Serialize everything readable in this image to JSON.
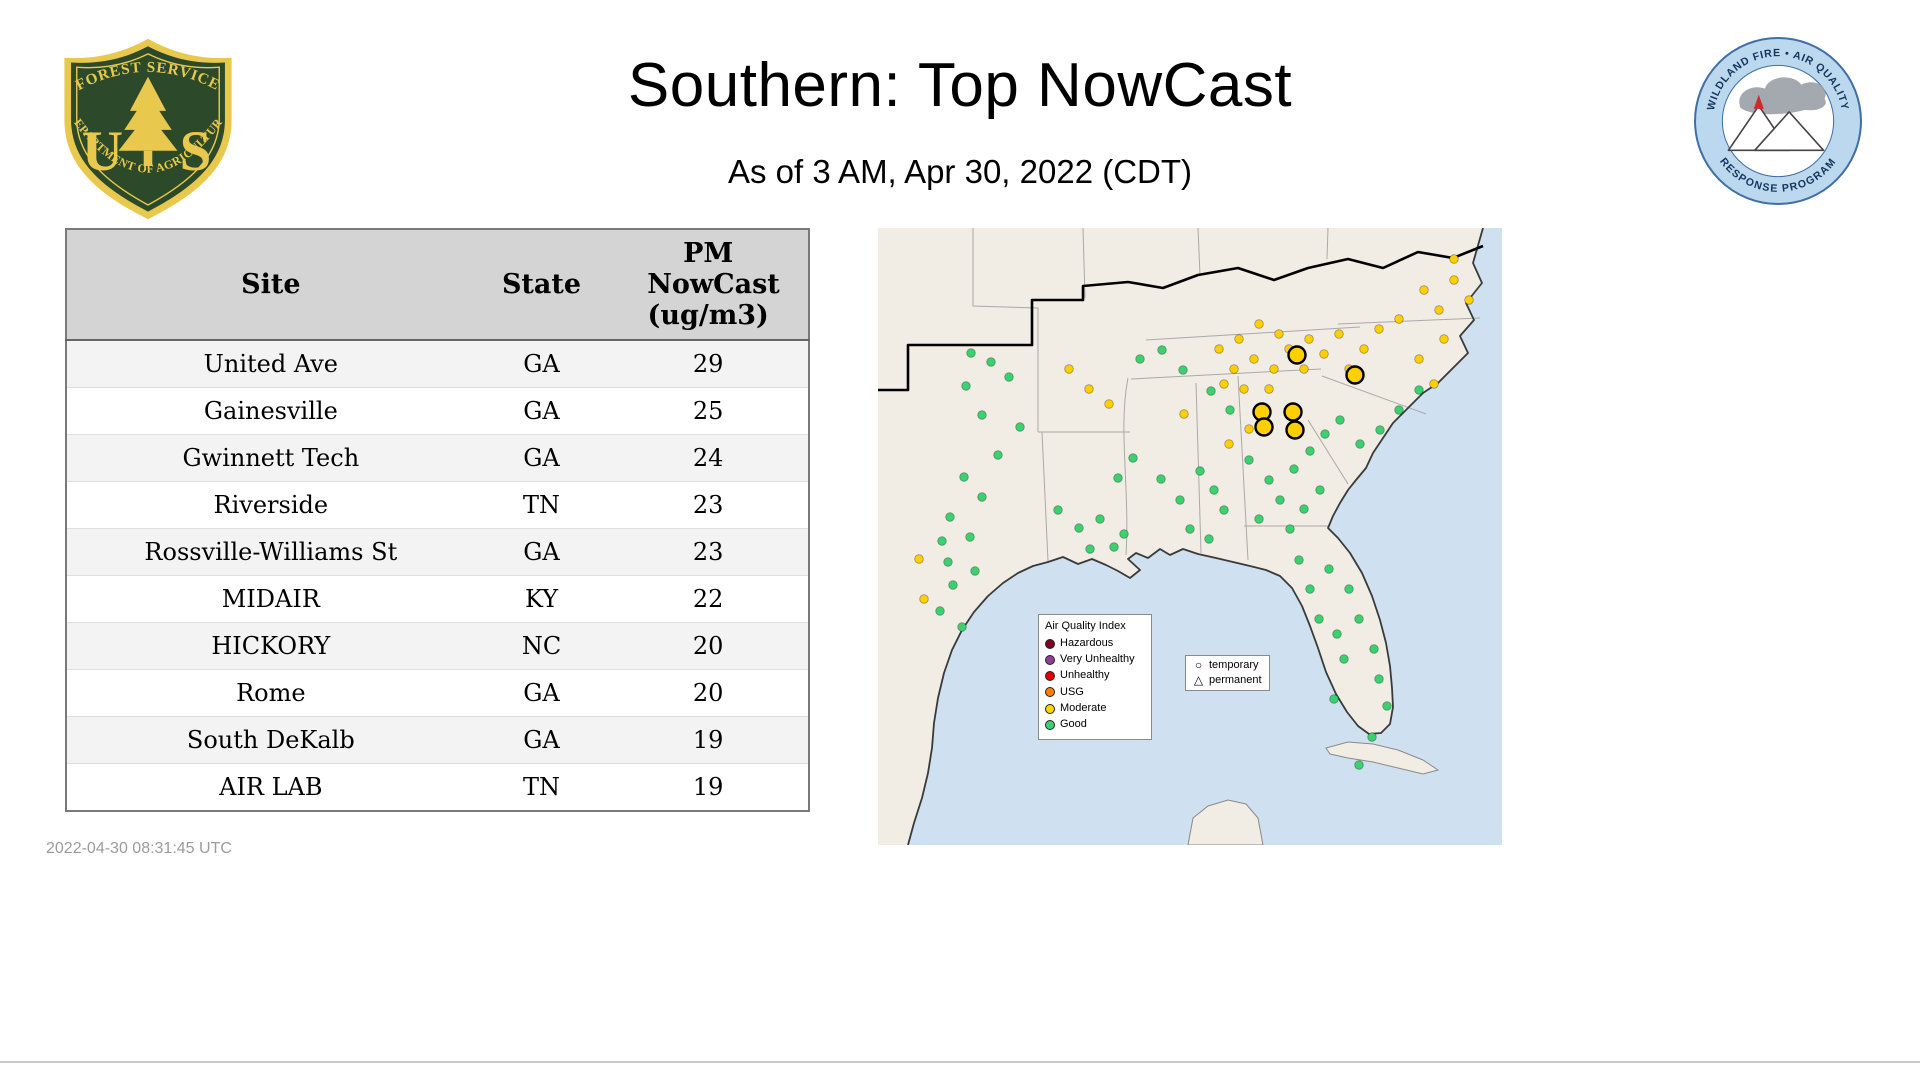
{
  "header": {
    "title": "Southern: Top NowCast",
    "subtitle": "As of  3 AM, Apr 30, 2022 (CDT)"
  },
  "logos": {
    "forest_service": {
      "arc_top": "FOREST SERVICE",
      "letter_u": "U",
      "letter_s": "S",
      "arc_bottom": "DEPARTMENT OF AGRICULTURE"
    },
    "airfire": {
      "arc_top": "WILDLAND FIRE • AIR QUALITY",
      "arc_bottom": "RESPONSE PROGRAM"
    }
  },
  "table": {
    "columns": [
      "Site",
      "State",
      "PM NowCast (ug/m3)"
    ],
    "rows": [
      [
        "United Ave",
        "GA",
        29
      ],
      [
        "Gainesville",
        "GA",
        25
      ],
      [
        "Gwinnett Tech",
        "GA",
        24
      ],
      [
        "Riverside",
        "TN",
        23
      ],
      [
        "Rossville-Williams St",
        "GA",
        23
      ],
      [
        "MIDAIR",
        "KY",
        22
      ],
      [
        "HICKORY",
        "NC",
        20
      ],
      [
        "Rome",
        "GA",
        20
      ],
      [
        "South DeKalb",
        "GA",
        19
      ],
      [
        "AIR LAB",
        "TN",
        19
      ]
    ]
  },
  "footer": {
    "timestamp": "2022-04-30 08:31:45 UTC"
  },
  "map": {
    "colors": {
      "good": "#3bd16f",
      "moderate": "#ffcf00",
      "water": "#cfe1f0",
      "land": "#f1ece4"
    },
    "legend": {
      "title": "Air Quality Index",
      "items": [
        {
          "label": "Hazardous",
          "color": "#7e0023"
        },
        {
          "label": "Very Unhealthy",
          "color": "#8f3f97"
        },
        {
          "label": "Unhealthy",
          "color": "#e00000"
        },
        {
          "label": "USG",
          "color": "#ff7e00"
        },
        {
          "label": "Moderate",
          "color": "#ffd400"
        },
        {
          "label": "Good",
          "color": "#3bd16f"
        }
      ]
    },
    "marker_legend": {
      "items": [
        {
          "label": "temporary",
          "shape": "circle"
        },
        {
          "label": "permanent",
          "shape": "triangle"
        }
      ]
    },
    "points": [
      [
        93,
        125,
        "g"
      ],
      [
        113,
        134,
        "g"
      ],
      [
        88,
        158,
        "g"
      ],
      [
        131,
        149,
        "g"
      ],
      [
        104,
        187,
        "g"
      ],
      [
        142,
        199,
        "g"
      ],
      [
        120,
        227,
        "g"
      ],
      [
        86,
        249,
        "g"
      ],
      [
        104,
        269,
        "g"
      ],
      [
        72,
        289,
        "g"
      ],
      [
        64,
        313,
        "g"
      ],
      [
        92,
        309,
        "g"
      ],
      [
        70,
        334,
        "g"
      ],
      [
        75,
        357,
        "g"
      ],
      [
        97,
        343,
        "g"
      ],
      [
        62,
        383,
        "g"
      ],
      [
        84,
        399,
        "g"
      ],
      [
        180,
        282,
        "g"
      ],
      [
        201,
        300,
        "g"
      ],
      [
        222,
        291,
        "g"
      ],
      [
        246,
        306,
        "g"
      ],
      [
        212,
        321,
        "g"
      ],
      [
        236,
        319,
        "g"
      ],
      [
        283,
        251,
        "g"
      ],
      [
        302,
        272,
        "g"
      ],
      [
        322,
        243,
        "g"
      ],
      [
        336,
        262,
        "g"
      ],
      [
        346,
        282,
        "g"
      ],
      [
        312,
        301,
        "g"
      ],
      [
        331,
        311,
        "g"
      ],
      [
        371,
        232,
        "g"
      ],
      [
        391,
        252,
        "g"
      ],
      [
        402,
        272,
        "g"
      ],
      [
        381,
        291,
        "g"
      ],
      [
        412,
        301,
        "g"
      ],
      [
        426,
        281,
        "g"
      ],
      [
        442,
        262,
        "g"
      ],
      [
        416,
        241,
        "g"
      ],
      [
        432,
        223,
        "g"
      ],
      [
        421,
        332,
        "g"
      ],
      [
        451,
        341,
        "g"
      ],
      [
        471,
        361,
        "g"
      ],
      [
        481,
        391,
        "g"
      ],
      [
        496,
        421,
        "g"
      ],
      [
        501,
        451,
        "g"
      ],
      [
        509,
        478,
        "g"
      ],
      [
        494,
        509,
        "g"
      ],
      [
        481,
        537,
        "g"
      ],
      [
        466,
        431,
        "g"
      ],
      [
        456,
        471,
        "g"
      ],
      [
        441,
        391,
        "g"
      ],
      [
        432,
        361,
        "g"
      ],
      [
        459,
        406,
        "g"
      ],
      [
        521,
        182,
        "g"
      ],
      [
        541,
        162,
        "g"
      ],
      [
        502,
        202,
        "g"
      ],
      [
        482,
        216,
        "g"
      ],
      [
        462,
        192,
        "g"
      ],
      [
        447,
        206,
        "g"
      ],
      [
        352,
        182,
        "g"
      ],
      [
        333,
        163,
        "g"
      ],
      [
        305,
        142,
        "g"
      ],
      [
        284,
        122,
        "g"
      ],
      [
        262,
        131,
        "g"
      ],
      [
        240,
        250,
        "g"
      ],
      [
        255,
        230,
        "g"
      ],
      [
        341,
        121,
        "m"
      ],
      [
        361,
        111,
        "m"
      ],
      [
        381,
        96,
        "m"
      ],
      [
        401,
        106,
        "m"
      ],
      [
        356,
        141,
        "m"
      ],
      [
        376,
        131,
        "m"
      ],
      [
        396,
        141,
        "m"
      ],
      [
        411,
        121,
        "m"
      ],
      [
        431,
        111,
        "m"
      ],
      [
        346,
        156,
        "m"
      ],
      [
        366,
        161,
        "m"
      ],
      [
        391,
        161,
        "m"
      ],
      [
        426,
        141,
        "m"
      ],
      [
        446,
        126,
        "m"
      ],
      [
        461,
        106,
        "m"
      ],
      [
        471,
        141,
        "m"
      ],
      [
        486,
        121,
        "m"
      ],
      [
        501,
        101,
        "m"
      ],
      [
        521,
        91,
        "m"
      ],
      [
        546,
        62,
        "m"
      ],
      [
        561,
        82,
        "m"
      ],
      [
        576,
        52,
        "m"
      ],
      [
        591,
        72,
        "m"
      ],
      [
        566,
        111,
        "m"
      ],
      [
        541,
        131,
        "m"
      ],
      [
        556,
        156,
        "m"
      ],
      [
        211,
        161,
        "m"
      ],
      [
        231,
        176,
        "m"
      ],
      [
        191,
        141,
        "m"
      ],
      [
        371,
        201,
        "m"
      ],
      [
        351,
        216,
        "m"
      ],
      [
        46,
        371,
        "m"
      ],
      [
        41,
        331,
        "m"
      ],
      [
        576,
        31,
        "m"
      ],
      [
        306,
        186,
        "m"
      ]
    ],
    "highlights": [
      [
        419,
        127
      ],
      [
        477,
        147
      ],
      [
        384,
        184
      ],
      [
        386,
        199
      ],
      [
        415,
        184
      ],
      [
        417,
        202
      ]
    ]
  },
  "chart_data": {
    "type": "table",
    "title": "Southern: Top NowCast",
    "subtitle": "As of 3 AM, Apr 30, 2022 (CDT)",
    "columns": [
      "Site",
      "State",
      "PM NowCast (ug/m3)"
    ],
    "rows": [
      [
        "United Ave",
        "GA",
        29
      ],
      [
        "Gainesville",
        "GA",
        25
      ],
      [
        "Gwinnett Tech",
        "GA",
        24
      ],
      [
        "Riverside",
        "TN",
        23
      ],
      [
        "Rossville-Williams St",
        "GA",
        23
      ],
      [
        "MIDAIR",
        "KY",
        22
      ],
      [
        "HICKORY",
        "NC",
        20
      ],
      [
        "Rome",
        "GA",
        20
      ],
      [
        "South DeKalb",
        "GA",
        19
      ],
      [
        "AIR LAB",
        "TN",
        19
      ]
    ]
  }
}
